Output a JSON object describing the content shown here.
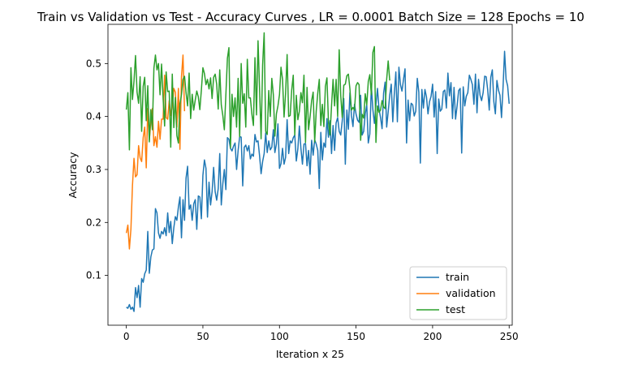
{
  "chart_data": {
    "type": "line",
    "title": "Train vs Validation vs Test - Accuracy Curves , LR = 0.0001 Batch Size = 128 Epochs = 10",
    "xlabel": "Iteration x 25",
    "ylabel": "Accuracy",
    "xlim": [
      -12,
      252
    ],
    "ylim": [
      0.006,
      0.574
    ],
    "xticks": [
      0,
      50,
      100,
      150,
      200,
      250
    ],
    "yticks": [
      0.1,
      0.2,
      0.3,
      0.4,
      0.5
    ],
    "ytick_labels": [
      "0.1",
      "0.2",
      "0.3",
      "0.4",
      "0.5"
    ],
    "grid": false,
    "legend_position": "lower-right",
    "series": [
      {
        "name": "train",
        "color": "#1f77b4",
        "x_start": 0,
        "values": [
          0.04,
          0.038,
          0.045,
          0.036,
          0.04,
          0.032,
          0.077,
          0.058,
          0.081,
          0.04,
          0.094,
          0.087,
          0.103,
          0.11,
          0.183,
          0.104,
          0.135,
          0.148,
          0.15,
          0.226,
          0.218,
          0.18,
          0.17,
          0.183,
          0.178,
          0.19,
          0.175,
          0.218,
          0.181,
          0.202,
          0.16,
          0.19,
          0.211,
          0.204,
          0.229,
          0.248,
          0.171,
          0.243,
          0.204,
          0.284,
          0.306,
          0.225,
          0.233,
          0.204,
          0.235,
          0.243,
          0.187,
          0.25,
          0.248,
          0.207,
          0.289,
          0.318,
          0.302,
          0.21,
          0.276,
          0.233,
          0.258,
          0.304,
          0.258,
          0.242,
          0.264,
          0.33,
          0.233,
          0.273,
          0.3,
          0.262,
          0.36,
          0.357,
          0.34,
          0.335,
          0.344,
          0.35,
          0.3,
          0.336,
          0.362,
          0.361,
          0.269,
          0.342,
          0.346,
          0.335,
          0.345,
          0.32,
          0.329,
          0.325,
          0.366,
          0.352,
          0.354,
          0.326,
          0.292,
          0.315,
          0.33,
          0.369,
          0.332,
          0.354,
          0.337,
          0.342,
          0.375,
          0.332,
          0.348,
          0.386,
          0.302,
          0.311,
          0.34,
          0.31,
          0.323,
          0.394,
          0.33,
          0.354,
          0.35,
          0.36,
          0.365,
          0.316,
          0.339,
          0.382,
          0.34,
          0.31,
          0.348,
          0.349,
          0.307,
          0.336,
          0.291,
          0.355,
          0.327,
          0.356,
          0.348,
          0.336,
          0.264,
          0.37,
          0.318,
          0.35,
          0.342,
          0.396,
          0.361,
          0.392,
          0.33,
          0.383,
          0.336,
          0.388,
          0.398,
          0.372,
          0.365,
          0.392,
          0.434,
          0.31,
          0.412,
          0.376,
          0.445,
          0.402,
          0.381,
          0.423,
          0.405,
          0.393,
          0.389,
          0.44,
          0.365,
          0.372,
          0.405,
          0.422,
          0.35,
          0.367,
          0.458,
          0.413,
          0.387,
          0.423,
          0.453,
          0.414,
          0.398,
          0.377,
          0.444,
          0.465,
          0.38,
          0.409,
          0.44,
          0.461,
          0.39,
          0.443,
          0.484,
          0.39,
          0.493,
          0.46,
          0.448,
          0.47,
          0.49,
          0.35,
          0.431,
          0.392,
          0.425,
          0.422,
          0.401,
          0.41,
          0.472,
          0.446,
          0.312,
          0.451,
          0.416,
          0.451,
          0.437,
          0.405,
          0.428,
          0.438,
          0.461,
          0.399,
          0.447,
          0.33,
          0.433,
          0.41,
          0.414,
          0.447,
          0.45,
          0.416,
          0.482,
          0.439,
          0.464,
          0.396,
          0.455,
          0.395,
          0.42,
          0.449,
          0.453,
          0.331,
          0.456,
          0.42,
          0.438,
          0.445,
          0.478,
          0.47,
          0.46,
          0.423,
          0.48,
          0.407,
          0.47,
          0.44,
          0.43,
          0.445,
          0.476,
          0.475,
          0.45,
          0.412,
          0.474,
          0.488,
          0.428,
          0.405,
          0.468,
          0.45,
          0.44,
          0.398,
          0.455,
          0.523,
          0.47,
          0.458,
          0.424
        ]
      },
      {
        "name": "validation",
        "color": "#ff7f0e",
        "x_start": 0,
        "values": [
          0.18,
          0.195,
          0.15,
          0.188,
          0.27,
          0.321,
          0.286,
          0.29,
          0.345,
          0.322,
          0.315,
          0.36,
          0.38,
          0.303,
          0.415,
          0.355,
          0.39,
          0.415,
          0.345,
          0.362,
          0.342,
          0.391,
          0.357,
          0.395,
          0.395,
          0.478,
          0.398,
          0.395,
          0.43,
          0.402,
          0.42,
          0.453,
          0.446,
          0.38,
          0.453,
          0.338,
          0.475,
          0.516,
          0.41
        ]
      },
      {
        "name": "test",
        "color": "#2ca02c",
        "x_start": 0,
        "values": [
          0.413,
          0.445,
          0.337,
          0.492,
          0.432,
          0.467,
          0.515,
          0.446,
          0.425,
          0.475,
          0.372,
          0.457,
          0.474,
          0.392,
          0.458,
          0.352,
          0.413,
          0.375,
          0.491,
          0.516,
          0.488,
          0.5,
          0.441,
          0.499,
          0.435,
          0.382,
          0.484,
          0.447,
          0.448,
          0.342,
          0.48,
          0.379,
          0.436,
          0.364,
          0.35,
          0.424,
          0.441,
          0.47,
          0.476,
          0.445,
          0.42,
          0.482,
          0.396,
          0.442,
          0.412,
          0.431,
          0.448,
          0.437,
          0.413,
          0.45,
          0.492,
          0.481,
          0.46,
          0.47,
          0.452,
          0.473,
          0.434,
          0.474,
          0.48,
          0.461,
          0.414,
          0.488,
          0.422,
          0.402,
          0.375,
          0.441,
          0.51,
          0.53,
          0.341,
          0.442,
          0.4,
          0.435,
          0.38,
          0.472,
          0.362,
          0.5,
          0.425,
          0.443,
          0.38,
          0.508,
          0.435,
          0.435,
          0.404,
          0.383,
          0.511,
          0.403,
          0.543,
          0.453,
          0.358,
          0.497,
          0.558,
          0.372,
          0.366,
          0.449,
          0.4,
          0.472,
          0.441,
          0.363,
          0.405,
          0.42,
          0.441,
          0.493,
          0.47,
          0.399,
          0.444,
          0.517,
          0.4,
          0.402,
          0.45,
          0.478,
          0.365,
          0.44,
          0.394,
          0.41,
          0.445,
          0.426,
          0.478,
          0.351,
          0.455,
          0.375,
          0.4,
          0.43,
          0.446,
          0.352,
          0.41,
          0.444,
          0.47,
          0.383,
          0.423,
          0.381,
          0.457,
          0.473,
          0.389,
          0.365,
          0.42,
          0.47,
          0.42,
          0.47,
          0.4,
          0.526,
          0.44,
          0.398,
          0.459,
          0.461,
          0.477,
          0.48,
          0.452,
          0.412,
          0.417,
          0.412,
          0.458,
          0.464,
          0.46,
          0.355,
          0.404,
          0.397,
          0.443,
          0.422,
          0.466,
          0.479,
          0.441,
          0.521,
          0.532,
          0.351,
          0.42,
          0.408,
          0.412,
          0.43,
          0.418,
          0.415,
          0.47,
          0.505,
          0.468
        ]
      }
    ]
  }
}
